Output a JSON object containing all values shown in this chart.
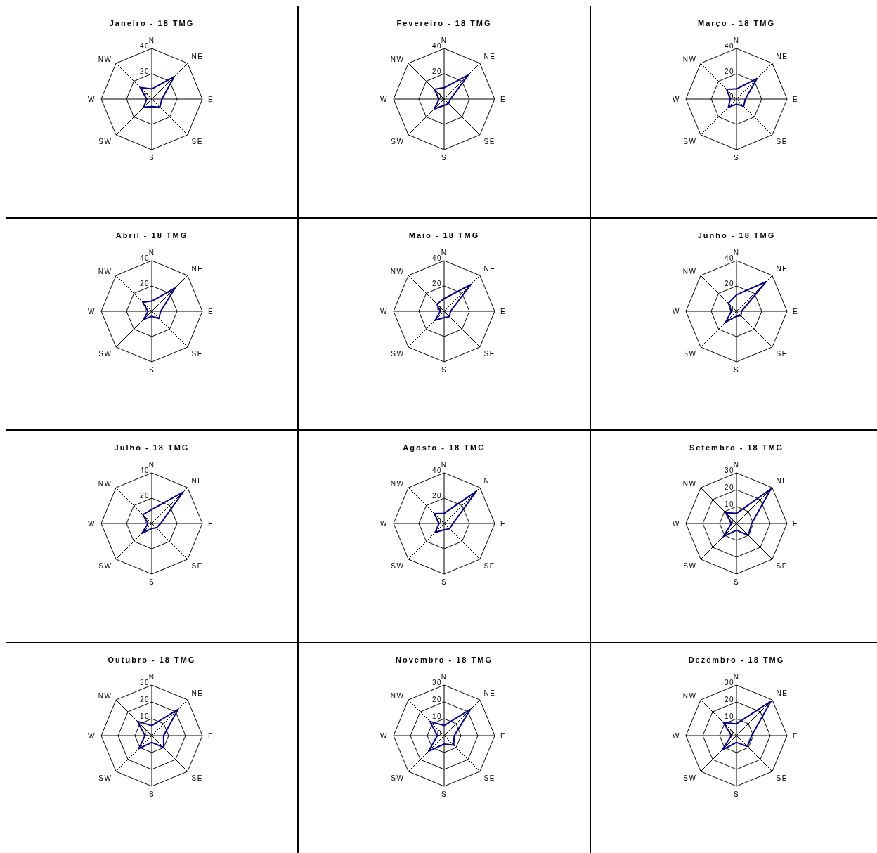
{
  "chart_data": [
    {
      "type": "radar",
      "title": "Janeiro - 18 TMG",
      "categories": [
        "N",
        "NE",
        "E",
        "SE",
        "S",
        "SW",
        "W",
        "NW"
      ],
      "series": [
        {
          "color": "#000080",
          "values": [
            8,
            25,
            8,
            9,
            6,
            9,
            4,
            13
          ]
        }
      ],
      "ylim": [
        0,
        40
      ],
      "yticks": [
        0,
        20,
        40
      ],
      "grid": true,
      "marker": "none"
    },
    {
      "type": "radar",
      "title": "Fevereiro - 18 TMG",
      "categories": [
        "N",
        "NE",
        "E",
        "SE",
        "S",
        "SW",
        "W",
        "NW"
      ],
      "series": [
        {
          "color": "#000080",
          "values": [
            9,
            27,
            5,
            5,
            5,
            11,
            4,
            11
          ]
        }
      ],
      "ylim": [
        0,
        40
      ],
      "yticks": [
        0,
        20,
        40
      ],
      "grid": true,
      "marker": "none"
    },
    {
      "type": "radar",
      "title": "Março - 18 TMG",
      "categories": [
        "N",
        "NE",
        "E",
        "SE",
        "S",
        "SW",
        "W",
        "NW"
      ],
      "series": [
        {
          "color": "#000080",
          "values": [
            8,
            23,
            7,
            8,
            4,
            9,
            5,
            11
          ]
        }
      ],
      "ylim": [
        0,
        40
      ],
      "yticks": [
        0,
        20,
        40
      ],
      "grid": true,
      "marker": "none"
    },
    {
      "type": "radar",
      "title": "Abril - 18 TMG",
      "categories": [
        "N",
        "NE",
        "E",
        "SE",
        "S",
        "SW",
        "W",
        "NW"
      ],
      "series": [
        {
          "color": "#000080",
          "values": [
            8,
            26,
            7,
            8,
            4,
            9,
            3,
            10
          ]
        }
      ],
      "ylim": [
        0,
        40
      ],
      "yticks": [
        0,
        20,
        40
      ],
      "grid": true,
      "marker": "none"
    },
    {
      "type": "radar",
      "title": "Maio - 18 TMG",
      "categories": [
        "N",
        "NE",
        "E",
        "SE",
        "S",
        "SW",
        "W",
        "NW"
      ],
      "series": [
        {
          "color": "#000080",
          "values": [
            10,
            30,
            5,
            6,
            5,
            10,
            3,
            8
          ]
        }
      ],
      "ylim": [
        0,
        40
      ],
      "yticks": [
        0,
        20,
        40
      ],
      "grid": true,
      "marker": "none"
    },
    {
      "type": "radar",
      "title": "Junho - 18 TMG",
      "categories": [
        "N",
        "NE",
        "E",
        "SE",
        "S",
        "SW",
        "W",
        "NW"
      ],
      "series": [
        {
          "color": "#000080",
          "values": [
            13,
            33,
            4,
            5,
            4,
            12,
            4,
            9
          ]
        }
      ],
      "ylim": [
        0,
        40
      ],
      "yticks": [
        0,
        20,
        40
      ],
      "grid": true,
      "marker": "none"
    },
    {
      "type": "radar",
      "title": "Julho - 18 TMG",
      "categories": [
        "N",
        "NE",
        "E",
        "SE",
        "S",
        "SW",
        "W",
        "NW"
      ],
      "series": [
        {
          "color": "#000080",
          "values": [
            11,
            35,
            7,
            5,
            4,
            11,
            3,
            10
          ]
        }
      ],
      "ylim": [
        0,
        40
      ],
      "yticks": [
        0,
        20,
        40
      ],
      "grid": true,
      "marker": "none"
    },
    {
      "type": "radar",
      "title": "Agosto - 18 TMG",
      "categories": [
        "N",
        "NE",
        "E",
        "SE",
        "S",
        "SW",
        "W",
        "NW"
      ],
      "series": [
        {
          "color": "#000080",
          "values": [
            8,
            36,
            7,
            6,
            5,
            10,
            4,
            11
          ]
        }
      ],
      "ylim": [
        0,
        40
      ],
      "yticks": [
        0,
        20,
        40
      ],
      "grid": true,
      "marker": "none"
    },
    {
      "type": "radar",
      "title": "Setembro - 18 TMG",
      "categories": [
        "N",
        "NE",
        "E",
        "SE",
        "S",
        "SW",
        "W",
        "NW"
      ],
      "series": [
        {
          "color": "#000080",
          "values": [
            6,
            29,
            9,
            10,
            4,
            11,
            3,
            9
          ]
        }
      ],
      "ylim": [
        0,
        30
      ],
      "yticks": [
        0,
        10,
        20,
        30
      ],
      "grid": true,
      "marker": "none"
    },
    {
      "type": "radar",
      "title": "Outubro - 18 TMG",
      "categories": [
        "N",
        "NE",
        "E",
        "SE",
        "S",
        "SW",
        "W",
        "NW"
      ],
      "series": [
        {
          "color": "#000080",
          "values": [
            6,
            22,
            7,
            10,
            4,
            11,
            4,
            12
          ]
        }
      ],
      "ylim": [
        0,
        30
      ],
      "yticks": [
        0,
        10,
        20,
        30
      ],
      "grid": true,
      "marker": "none"
    },
    {
      "type": "radar",
      "title": "Novembro - 18 TMG",
      "categories": [
        "N",
        "NE",
        "E",
        "SE",
        "S",
        "SW",
        "W",
        "NW"
      ],
      "series": [
        {
          "color": "#000080",
          "values": [
            6,
            22,
            6,
            8,
            5,
            13,
            4,
            12
          ]
        }
      ],
      "ylim": [
        0,
        30
      ],
      "yticks": [
        0,
        10,
        20,
        30
      ],
      "grid": true,
      "marker": "none"
    },
    {
      "type": "radar",
      "title": "Dezembro - 18 TMG",
      "categories": [
        "N",
        "NE",
        "E",
        "SE",
        "S",
        "SW",
        "W",
        "NW"
      ],
      "series": [
        {
          "color": "#000080",
          "values": [
            7,
            29,
            9,
            9,
            4,
            12,
            3,
            11
          ]
        }
      ],
      "ylim": [
        0,
        30
      ],
      "yticks": [
        0,
        10,
        20,
        30
      ],
      "grid": true,
      "marker": "none"
    }
  ]
}
